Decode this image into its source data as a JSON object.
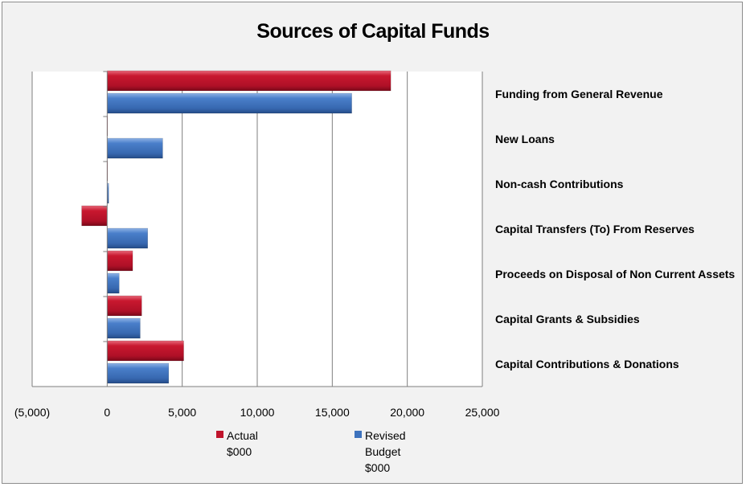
{
  "colors": {
    "actual": "#c0142c",
    "revised": "#3d72bd"
  },
  "chart_data": {
    "type": "bar",
    "orientation": "horizontal",
    "title": "Sources of Capital Funds",
    "categories": [
      "Funding from General Revenue",
      "New Loans",
      "Non-cash Contributions",
      "Capital Transfers (To) From Reserves",
      "Proceeds on Disposal of Non Current Assets",
      "Capital Grants & Subsidies",
      "Capital Contributions & Donations"
    ],
    "series": [
      {
        "name": "Actual\n$000",
        "values": [
          18900,
          0,
          30,
          -1700,
          1700,
          2300,
          5100
        ]
      },
      {
        "name": "Revised\nBudget\n$000",
        "values": [
          16300,
          3700,
          100,
          2700,
          800,
          2200,
          4100
        ]
      }
    ],
    "xlim": [
      -5000,
      25000
    ],
    "xticks": [
      -5000,
      0,
      5000,
      10000,
      15000,
      20000,
      25000
    ],
    "xtick_labels": [
      "(5,000)",
      "0",
      "5,000",
      "10,000",
      "15,000",
      "20,000",
      "25,000"
    ],
    "grid": true,
    "legend": "bottom"
  }
}
